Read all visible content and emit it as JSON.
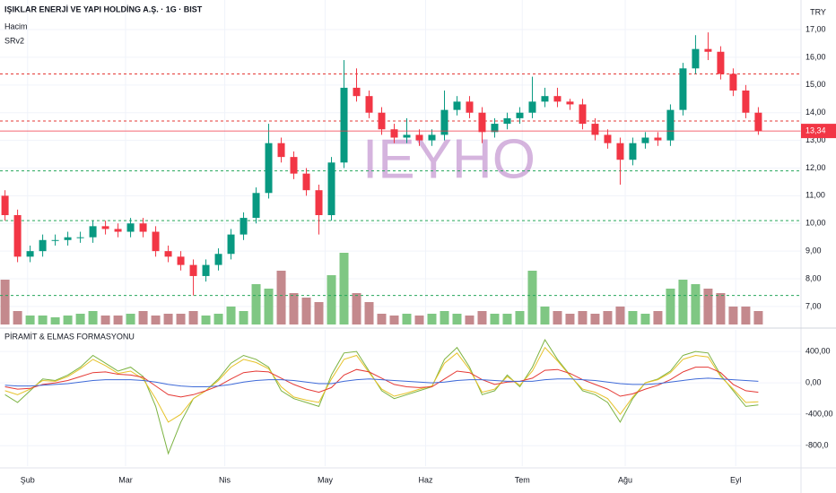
{
  "chart_data": [
    {
      "type": "candlestick",
      "title": "IŞIKLAR ENERJİ VE YAPI HOLDİNG A.Ş. · 1G · BIST",
      "indicators": [
        "Hacim",
        "SRv2"
      ],
      "currency": "TRY",
      "watermark": "IEYHO",
      "up_color": "#089981",
      "down_color": "#f23645",
      "volume_up_color": "#7fc783",
      "volume_down_color": "#c4898d",
      "candles": [
        [
          11.0,
          11.2,
          10.1,
          10.3
        ],
        [
          10.3,
          10.5,
          8.6,
          8.8
        ],
        [
          8.8,
          9.2,
          8.6,
          9.0
        ],
        [
          9.0,
          9.6,
          8.8,
          9.4
        ],
        [
          9.4,
          9.6,
          9.2,
          9.4
        ],
        [
          9.4,
          9.7,
          9.2,
          9.5
        ],
        [
          9.5,
          9.7,
          9.3,
          9.5
        ],
        [
          9.5,
          10.1,
          9.3,
          9.9
        ],
        [
          9.9,
          10.1,
          9.6,
          9.8
        ],
        [
          9.8,
          10.0,
          9.5,
          9.7
        ],
        [
          9.7,
          10.2,
          9.5,
          10.0
        ],
        [
          10.0,
          10.2,
          9.5,
          9.7
        ],
        [
          9.7,
          9.9,
          8.8,
          9.0
        ],
        [
          9.0,
          9.2,
          8.6,
          8.8
        ],
        [
          8.8,
          9.0,
          8.3,
          8.5
        ],
        [
          8.5,
          8.7,
          7.4,
          8.1
        ],
        [
          8.1,
          8.7,
          7.9,
          8.5
        ],
        [
          8.5,
          9.1,
          8.3,
          8.9
        ],
        [
          8.9,
          9.8,
          8.7,
          9.6
        ],
        [
          9.6,
          10.4,
          9.4,
          10.2
        ],
        [
          10.2,
          11.3,
          10.0,
          11.1
        ],
        [
          11.1,
          13.6,
          10.9,
          12.9
        ],
        [
          12.9,
          13.1,
          12.2,
          12.4
        ],
        [
          12.4,
          12.6,
          11.6,
          11.8
        ],
        [
          11.8,
          12.0,
          11.0,
          11.2
        ],
        [
          11.2,
          11.4,
          9.6,
          10.3
        ],
        [
          10.3,
          12.4,
          10.1,
          12.2
        ],
        [
          12.2,
          15.9,
          12.0,
          14.9
        ],
        [
          14.9,
          15.6,
          14.4,
          14.6
        ],
        [
          14.6,
          14.8,
          13.8,
          14.0
        ],
        [
          14.0,
          14.2,
          13.2,
          13.4
        ],
        [
          13.4,
          13.6,
          12.9,
          13.1
        ],
        [
          13.1,
          13.8,
          12.9,
          13.2
        ],
        [
          13.2,
          13.4,
          12.8,
          13.0
        ],
        [
          13.0,
          13.4,
          12.8,
          13.2
        ],
        [
          13.2,
          14.8,
          13.0,
          14.1
        ],
        [
          14.1,
          14.6,
          13.9,
          14.4
        ],
        [
          14.4,
          14.6,
          13.8,
          14.0
        ],
        [
          14.0,
          14.2,
          12.9,
          13.3
        ],
        [
          13.3,
          13.8,
          13.1,
          13.6
        ],
        [
          13.6,
          14.0,
          13.4,
          13.8
        ],
        [
          13.8,
          14.2,
          13.6,
          14.0
        ],
        [
          14.0,
          15.3,
          13.8,
          14.4
        ],
        [
          14.4,
          14.9,
          14.2,
          14.6
        ],
        [
          14.6,
          14.9,
          14.2,
          14.4
        ],
        [
          14.4,
          14.5,
          14.1,
          14.3
        ],
        [
          14.3,
          14.5,
          13.4,
          13.6
        ],
        [
          13.6,
          13.8,
          13.0,
          13.2
        ],
        [
          13.2,
          13.4,
          12.7,
          12.9
        ],
        [
          12.9,
          13.1,
          11.4,
          12.3
        ],
        [
          12.3,
          13.1,
          12.1,
          12.9
        ],
        [
          12.9,
          13.3,
          12.7,
          13.1
        ],
        [
          13.1,
          13.3,
          12.8,
          13.0
        ],
        [
          13.0,
          14.3,
          12.8,
          14.1
        ],
        [
          14.1,
          15.8,
          13.9,
          15.6
        ],
        [
          15.6,
          16.8,
          15.4,
          16.3
        ],
        [
          16.3,
          16.9,
          15.9,
          16.2
        ],
        [
          16.2,
          16.4,
          15.2,
          15.4
        ],
        [
          15.4,
          15.6,
          14.6,
          14.8
        ],
        [
          14.8,
          15.0,
          13.8,
          14.0
        ],
        [
          14.0,
          14.2,
          13.2,
          13.34
        ]
      ],
      "volume": [
        50,
        15,
        10,
        10,
        8,
        10,
        12,
        15,
        10,
        10,
        12,
        15,
        10,
        12,
        12,
        15,
        10,
        12,
        20,
        15,
        45,
        40,
        60,
        35,
        30,
        25,
        55,
        80,
        35,
        25,
        12,
        10,
        12,
        10,
        12,
        15,
        12,
        10,
        15,
        12,
        12,
        15,
        60,
        20,
        15,
        12,
        15,
        12,
        15,
        20,
        15,
        12,
        15,
        40,
        50,
        45,
        40,
        35,
        20,
        20,
        15
      ],
      "vlim": [
        0,
        100
      ],
      "levels": [
        {
          "value": 15.4,
          "color": "#e53935"
        },
        {
          "value": 13.7,
          "color": "#e53935"
        },
        {
          "value": 11.9,
          "color": "#26a65b"
        },
        {
          "value": 10.1,
          "color": "#26a65b"
        },
        {
          "value": 7.4,
          "color": "#26a65b"
        }
      ],
      "current_price": {
        "value": 13.34,
        "label": "13,34"
      },
      "xlim": [
        -0.4,
        63.4
      ],
      "ylim": [
        6.35,
        18.07
      ],
      "yticks": [
        {
          "value": 7,
          "label": "7,00"
        },
        {
          "value": 8,
          "label": "8,00"
        },
        {
          "value": 9,
          "label": "9,00"
        },
        {
          "value": 10,
          "label": "10,00"
        },
        {
          "value": 11,
          "label": "11,00"
        },
        {
          "value": 12,
          "label": "12,00"
        },
        {
          "value": 13,
          "label": "13,00"
        },
        {
          "value": 14,
          "label": "14,00"
        },
        {
          "value": 15,
          "label": "15,00"
        },
        {
          "value": 16,
          "label": "16,00"
        },
        {
          "value": 17,
          "label": "17,00"
        }
      ],
      "grid": true
    },
    {
      "type": "line",
      "title": "PİRAMİT & ELMAS FORMASYONU",
      "series": [
        {
          "color": "#7cb342",
          "values": [
            -150,
            -250,
            -100,
            50,
            30,
            100,
            200,
            350,
            250,
            150,
            200,
            80,
            -300,
            -900,
            -500,
            -200,
            -100,
            50,
            250,
            350,
            300,
            200,
            -100,
            -200,
            -250,
            -300,
            100,
            380,
            400,
            150,
            -100,
            -200,
            -150,
            -100,
            -50,
            300,
            450,
            200,
            -150,
            -100,
            100,
            -50,
            200,
            550,
            300,
            100,
            -100,
            -150,
            -250,
            -500,
            -200,
            0,
            50,
            150,
            350,
            400,
            380,
            100,
            -100,
            -300,
            -280
          ]
        },
        {
          "color": "#e6c229",
          "values": [
            -100,
            -150,
            -80,
            30,
            20,
            80,
            180,
            300,
            220,
            120,
            150,
            50,
            -200,
            -500,
            -400,
            -200,
            -100,
            30,
            200,
            300,
            260,
            180,
            -50,
            -180,
            -220,
            -250,
            50,
            300,
            350,
            130,
            -80,
            -170,
            -130,
            -80,
            -40,
            250,
            380,
            170,
            -120,
            -80,
            80,
            -30,
            150,
            450,
            280,
            90,
            -80,
            -120,
            -200,
            -400,
            -180,
            0,
            40,
            130,
            300,
            350,
            330,
            80,
            -80,
            -250,
            -240
          ]
        },
        {
          "color": "#e53935",
          "values": [
            -50,
            -80,
            -70,
            -20,
            0,
            30,
            80,
            130,
            140,
            110,
            100,
            70,
            -40,
            -150,
            -180,
            -150,
            -100,
            -40,
            50,
            130,
            150,
            140,
            60,
            -20,
            -80,
            -120,
            -60,
            100,
            170,
            140,
            60,
            -20,
            -50,
            -60,
            -50,
            50,
            150,
            130,
            40,
            -20,
            10,
            20,
            60,
            160,
            170,
            120,
            40,
            -20,
            -80,
            -170,
            -140,
            -80,
            -30,
            40,
            140,
            200,
            200,
            130,
            -20,
            -100,
            -120
          ]
        },
        {
          "color": "#3f6ad8",
          "values": [
            -30,
            -40,
            -40,
            -30,
            -20,
            -10,
            10,
            30,
            40,
            40,
            40,
            30,
            10,
            -20,
            -40,
            -50,
            -50,
            -40,
            -20,
            10,
            30,
            40,
            40,
            30,
            10,
            -10,
            -10,
            20,
            40,
            50,
            40,
            30,
            20,
            10,
            0,
            10,
            30,
            40,
            40,
            30,
            20,
            20,
            20,
            40,
            50,
            50,
            40,
            30,
            10,
            -10,
            -20,
            -20,
            -10,
            10,
            30,
            50,
            60,
            50,
            40,
            30,
            20
          ]
        }
      ],
      "xlim": [
        -0.4,
        63.4
      ],
      "ylim": [
        -1060,
        675
      ],
      "yticks": [
        {
          "value": 400,
          "label": "400,00"
        },
        {
          "value": 0,
          "label": "0,00"
        },
        {
          "value": -400,
          "label": "-400,00"
        },
        {
          "value": -800,
          "label": "-800,0"
        }
      ],
      "xticks": [
        {
          "value": 1.8,
          "label": "Şub"
        },
        {
          "value": 9.6,
          "label": "Mar"
        },
        {
          "value": 17.5,
          "label": "Nis"
        },
        {
          "value": 25.5,
          "label": "May"
        },
        {
          "value": 33.5,
          "label": "Haz"
        },
        {
          "value": 41.2,
          "label": "Tem"
        },
        {
          "value": 49.4,
          "label": "Ağu"
        },
        {
          "value": 58.2,
          "label": "Eyl"
        }
      ],
      "grid": true
    }
  ]
}
